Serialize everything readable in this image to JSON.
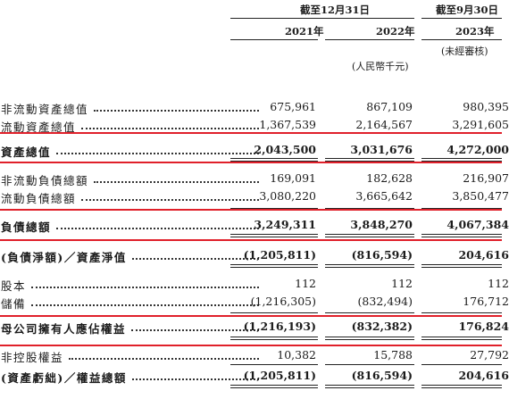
{
  "header": {
    "group1": "截至12月31日",
    "group2": "截至9月30日",
    "years": [
      "2021年",
      "2022年",
      "2023年"
    ],
    "unaudited": "(未經審核)",
    "unit": "(人民幣千元)"
  },
  "rows": [
    {
      "label": "非流動資產總值",
      "values": [
        "675,961",
        "867,109",
        "980,395"
      ],
      "bold": false
    },
    {
      "label": "流動資產總值",
      "values": [
        "1,367,539",
        "2,164,567",
        "3,291,605"
      ],
      "bold": false
    },
    {
      "label": "資產總值",
      "values": [
        "2,043,500",
        "3,031,676",
        "4,272,000"
      ],
      "bold": true
    },
    {
      "label": "非流動負債總額",
      "values": [
        "169,091",
        "182,628",
        "216,907"
      ],
      "bold": false
    },
    {
      "label": "流動負債總額",
      "values": [
        "3,080,220",
        "3,665,642",
        "3,850,477"
      ],
      "bold": false
    },
    {
      "label": "負債總額",
      "values": [
        "3,249,311",
        "3,848,270",
        "4,067,384"
      ],
      "bold": true
    },
    {
      "label": "(負債淨額)／資產淨值",
      "values": [
        "(1,205,811)",
        "(816,594)",
        "204,616"
      ],
      "bold": true
    },
    {
      "label": "股本",
      "values": [
        "112",
        "112",
        "112"
      ],
      "bold": false
    },
    {
      "label": "儲備",
      "values": [
        "(1,216,305)",
        "(832,494)",
        "176,712"
      ],
      "bold": false
    },
    {
      "label": "母公司擁有人應佔權益",
      "values": [
        "(1,216,193)",
        "(832,382)",
        "176,824"
      ],
      "bold": true
    },
    {
      "label": "非控股權益",
      "values": [
        "10,382",
        "15,788",
        "27,792"
      ],
      "bold": false
    },
    {
      "label": "(資產虧絀)／權益總額",
      "values": [
        "(1,205,811)",
        "(816,594)",
        "204,616"
      ],
      "bold": true
    }
  ]
}
